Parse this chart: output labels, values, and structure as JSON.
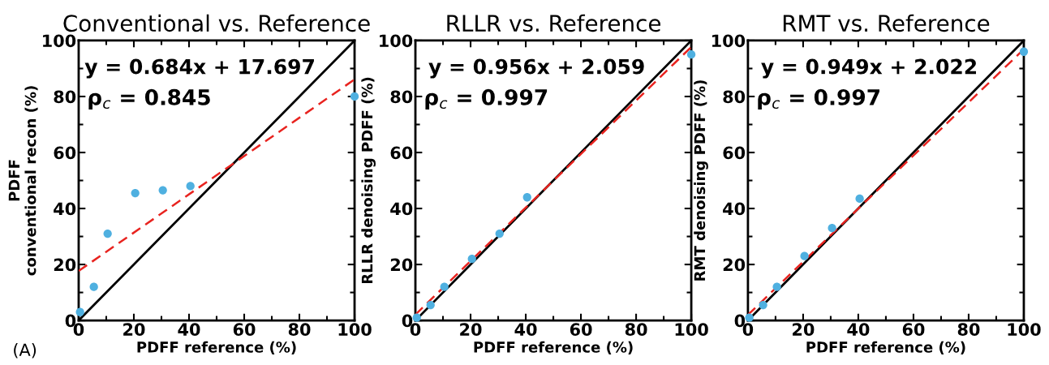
{
  "chart_data": [
    {
      "type": "scatter",
      "title": "Conventional vs. Reference",
      "xlabel": "PDFF reference (%)",
      "ylabel": "PDFF\nconventional recon (%)",
      "annotations": [
        "y = 0.684x + 17.697",
        "ρ$_{c}$ = 0.845",
        "(A)"
      ],
      "xlim": [
        0,
        100
      ],
      "ylim": [
        0,
        100
      ],
      "xticks": [
        0,
        20,
        40,
        60,
        80,
        100
      ],
      "yticks": [
        0,
        20,
        40,
        60,
        80,
        100
      ],
      "series": [
        {
          "type": "line",
          "color": "#000000",
          "x": [
            0,
            100
          ],
          "values": [
            0,
            100
          ],
          "line_style": "solid",
          "marker": "none"
        },
        {
          "type": "line",
          "color": "#e8231f",
          "x": [
            0,
            100
          ],
          "values": [
            17.7,
            86.1
          ],
          "line_style": "dashed",
          "marker": "none"
        },
        {
          "type": "scatter",
          "color": "#4fb0e0",
          "x": [
            0.5,
            5.5,
            10.5,
            20.5,
            30.5,
            40.5,
            100
          ],
          "values": [
            3,
            12,
            31,
            45.5,
            46.5,
            48,
            80
          ],
          "marker": "circle"
        }
      ]
    },
    {
      "type": "scatter",
      "title": "RLLR vs. Reference",
      "xlabel": "PDFF reference (%)",
      "ylabel": "RLLR denoising PDFF (%)",
      "annotations": [
        "y = 0.956x + 2.059",
        "ρ$_{c}$ = 0.997"
      ],
      "xlim": [
        0,
        100
      ],
      "ylim": [
        0,
        100
      ],
      "xticks": [
        0,
        20,
        40,
        60,
        80,
        100
      ],
      "yticks": [
        0,
        20,
        40,
        60,
        80,
        100
      ],
      "series": [
        {
          "type": "line",
          "color": "#000000",
          "x": [
            0,
            100
          ],
          "values": [
            0,
            100
          ],
          "line_style": "solid",
          "marker": "none"
        },
        {
          "type": "line",
          "color": "#e8231f",
          "x": [
            0,
            100
          ],
          "values": [
            2.1,
            97.7
          ],
          "line_style": "dashed",
          "marker": "none"
        },
        {
          "type": "scatter",
          "color": "#4fb0e0",
          "x": [
            0.5,
            5.5,
            10.5,
            20.5,
            30.5,
            40.5,
            100
          ],
          "values": [
            1,
            5.5,
            12,
            22,
            31,
            44,
            95
          ],
          "marker": "circle"
        }
      ]
    },
    {
      "type": "scatter",
      "title": "RMT vs. Reference",
      "xlabel": "PDFF reference (%)",
      "ylabel": "RMT denoising PDFF (%)",
      "annotations": [
        "y = 0.949x + 2.022",
        "ρ$_{c}$ = 0.997"
      ],
      "xlim": [
        0,
        100
      ],
      "ylim": [
        0,
        100
      ],
      "xticks": [
        0,
        20,
        40,
        60,
        80,
        100
      ],
      "yticks": [
        0,
        20,
        40,
        60,
        80,
        100
      ],
      "series": [
        {
          "type": "line",
          "color": "#000000",
          "x": [
            0,
            100
          ],
          "values": [
            0,
            100
          ],
          "line_style": "solid",
          "marker": "none"
        },
        {
          "type": "line",
          "color": "#e8231f",
          "x": [
            0,
            100
          ],
          "values": [
            2.0,
            96.9
          ],
          "line_style": "dashed",
          "marker": "none"
        },
        {
          "type": "scatter",
          "color": "#4fb0e0",
          "x": [
            0.5,
            5.5,
            10.5,
            20.5,
            30.5,
            40.5,
            100
          ],
          "values": [
            1,
            5.5,
            12,
            23,
            33,
            43.5,
            96
          ],
          "marker": "circle"
        }
      ]
    }
  ]
}
